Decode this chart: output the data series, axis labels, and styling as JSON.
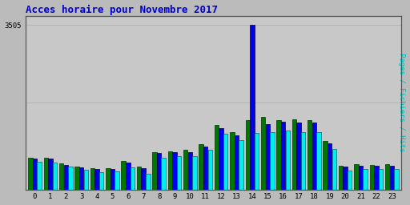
{
  "title": "Acces horaire pour Novembre 2017",
  "ylabel_right": "Pages / Fichiers / Hits",
  "hours": [
    0,
    1,
    2,
    3,
    4,
    5,
    6,
    7,
    8,
    9,
    10,
    11,
    12,
    13,
    14,
    15,
    16,
    17,
    18,
    19,
    20,
    21,
    22,
    23
  ],
  "pages": [
    680,
    680,
    550,
    490,
    460,
    460,
    600,
    490,
    800,
    820,
    840,
    960,
    1380,
    1230,
    1480,
    1550,
    1470,
    1500,
    1480,
    1030,
    500,
    540,
    530,
    540
  ],
  "fichiers": [
    650,
    660,
    530,
    470,
    440,
    440,
    570,
    460,
    770,
    790,
    800,
    920,
    1310,
    1160,
    3505,
    1400,
    1440,
    1430,
    1420,
    990,
    480,
    510,
    510,
    510
  ],
  "hits": [
    590,
    570,
    490,
    420,
    370,
    380,
    470,
    330,
    680,
    710,
    710,
    840,
    1190,
    1050,
    1210,
    1220,
    1250,
    1230,
    1230,
    870,
    400,
    440,
    430,
    440
  ],
  "color_pages": "#007700",
  "color_fichiers": "#0000EE",
  "color_hits": "#00EEEE",
  "edge_pages": "#003300",
  "edge_fichiers": "#000033",
  "edge_hits": "#006666",
  "bg_color": "#BBBBBB",
  "plot_bg": "#C8C8C8",
  "title_color": "#0000CC",
  "title_fontsize": 9,
  "ylabel_color": "#00BBBB",
  "ytick_label": "3505",
  "ymax": 3700,
  "grid_color": "#AAAAAA"
}
